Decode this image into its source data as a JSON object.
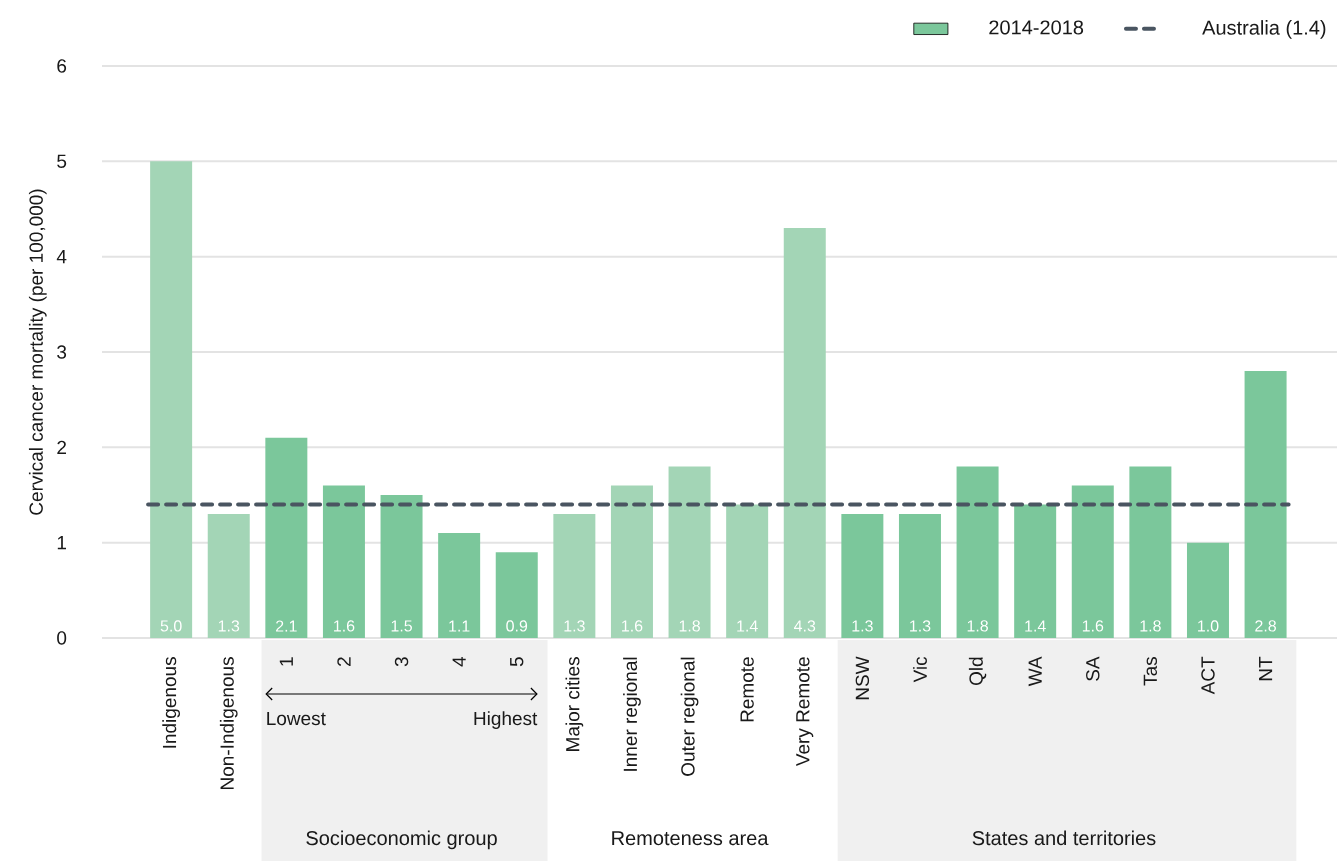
{
  "chart_data": {
    "type": "bar",
    "ylabel": "Cervical cancer mortality (per 100,000)",
    "categories": [
      "Indigenous",
      "Non-Indigenous",
      "1",
      "2",
      "3",
      "4",
      "5",
      "Major cities",
      "Inner regional",
      "Outer regional",
      "Remote",
      "Very Remote",
      "NSW",
      "Vic",
      "Qld",
      "WA",
      "SA",
      "Tas",
      "ACT",
      "NT"
    ],
    "series": [
      {
        "name": "2014-2018",
        "color": "#7bc79b",
        "values": [
          5.0,
          1.3,
          2.1,
          1.6,
          1.5,
          1.1,
          0.9,
          1.3,
          1.6,
          1.8,
          1.4,
          4.3,
          1.3,
          1.3,
          1.8,
          1.4,
          1.6,
          1.8,
          1.0,
          2.8
        ],
        "value_labels": [
          "5.0",
          "1.3",
          "2.1",
          "1.6",
          "1.5",
          "1.1",
          "0.9",
          "1.3",
          "1.6",
          "1.8",
          "1.4",
          "4.3",
          "1.3",
          "1.3",
          "1.8",
          "1.4",
          "1.6",
          "1.8",
          "1.0",
          "2.8"
        ],
        "colors": [
          "#a3d5b6",
          "#a3d5b6",
          "#7bc79b",
          "#7bc79b",
          "#7bc79b",
          "#7bc79b",
          "#7bc79b",
          "#a3d5b6",
          "#a3d5b6",
          "#a3d5b6",
          "#a3d5b6",
          "#a3d5b6",
          "#7bc79b",
          "#7bc79b",
          "#7bc79b",
          "#7bc79b",
          "#7bc79b",
          "#7bc79b",
          "#7bc79b",
          "#7bc79b"
        ]
      }
    ],
    "ylim": [
      0,
      6
    ],
    "yticks": [
      0,
      1,
      2,
      3,
      4,
      5,
      6
    ],
    "grid": "y",
    "legend": "top right",
    "ref_lines": [
      {
        "axis": "y",
        "value": 1.4,
        "label": "Australia (1.4)",
        "color": "#4a5561",
        "line_style": "dashed"
      }
    ],
    "annotations": [
      "Lowest",
      "Highest",
      "Socioeconomic group",
      "Remoteness area",
      "States and territories"
    ]
  }
}
